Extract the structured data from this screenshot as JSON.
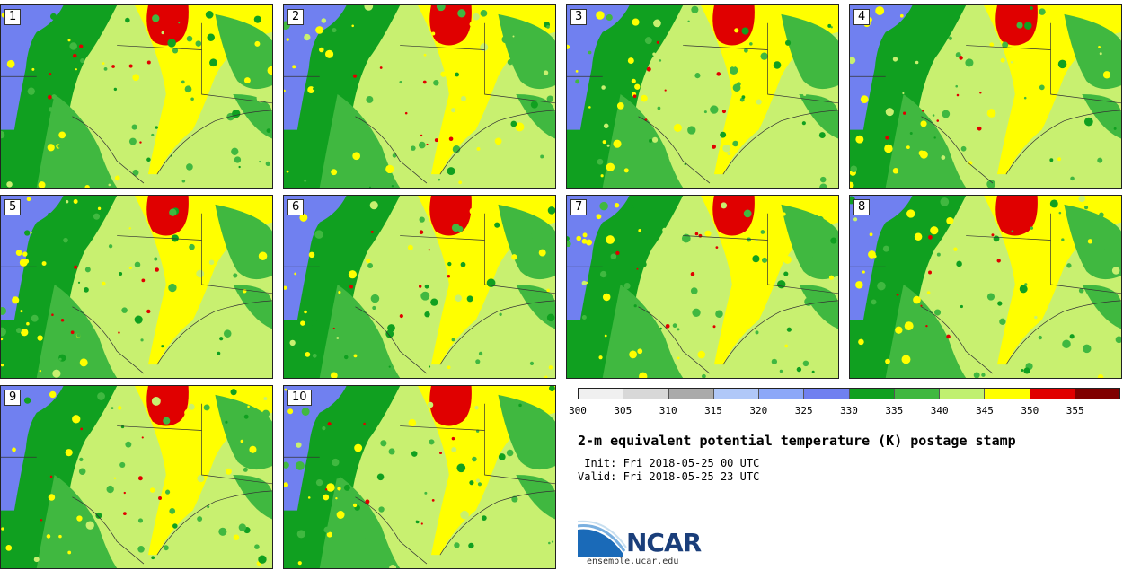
{
  "panels": [
    {
      "label": "1"
    },
    {
      "label": "2"
    },
    {
      "label": "3"
    },
    {
      "label": "4"
    },
    {
      "label": "5"
    },
    {
      "label": "6"
    },
    {
      "label": "7"
    },
    {
      "label": "8"
    },
    {
      "label": "9"
    },
    {
      "label": "10"
    }
  ],
  "colorbar": {
    "colors": [
      "#f0f0f0",
      "#d8d8d8",
      "#aaaaaa",
      "#b0c8f8",
      "#8ca8f8",
      "#7080f0",
      "#10a020",
      "#40b840",
      "#c0f070",
      "#ffff00",
      "#e00000",
      "#800000"
    ],
    "ticks": [
      "300",
      "305",
      "310",
      "315",
      "320",
      "325",
      "330",
      "335",
      "340",
      "345",
      "350",
      "355"
    ]
  },
  "title": "2-m equivalent potential temperature (K) postage stamp",
  "init": " Init: Fri 2018-05-25 00 UTC",
  "valid": "Valid: Fri 2018-05-25 23 UTC",
  "logo": {
    "text": "NCAR",
    "url": "ensemble.ucar.edu",
    "color": "#1a3e7a"
  },
  "map_colors": {
    "background": "#c8f070",
    "blue": "#7080f0",
    "dark_green": "#10a020",
    "green": "#40b840",
    "yellow": "#ffff00",
    "red": "#e00000"
  }
}
